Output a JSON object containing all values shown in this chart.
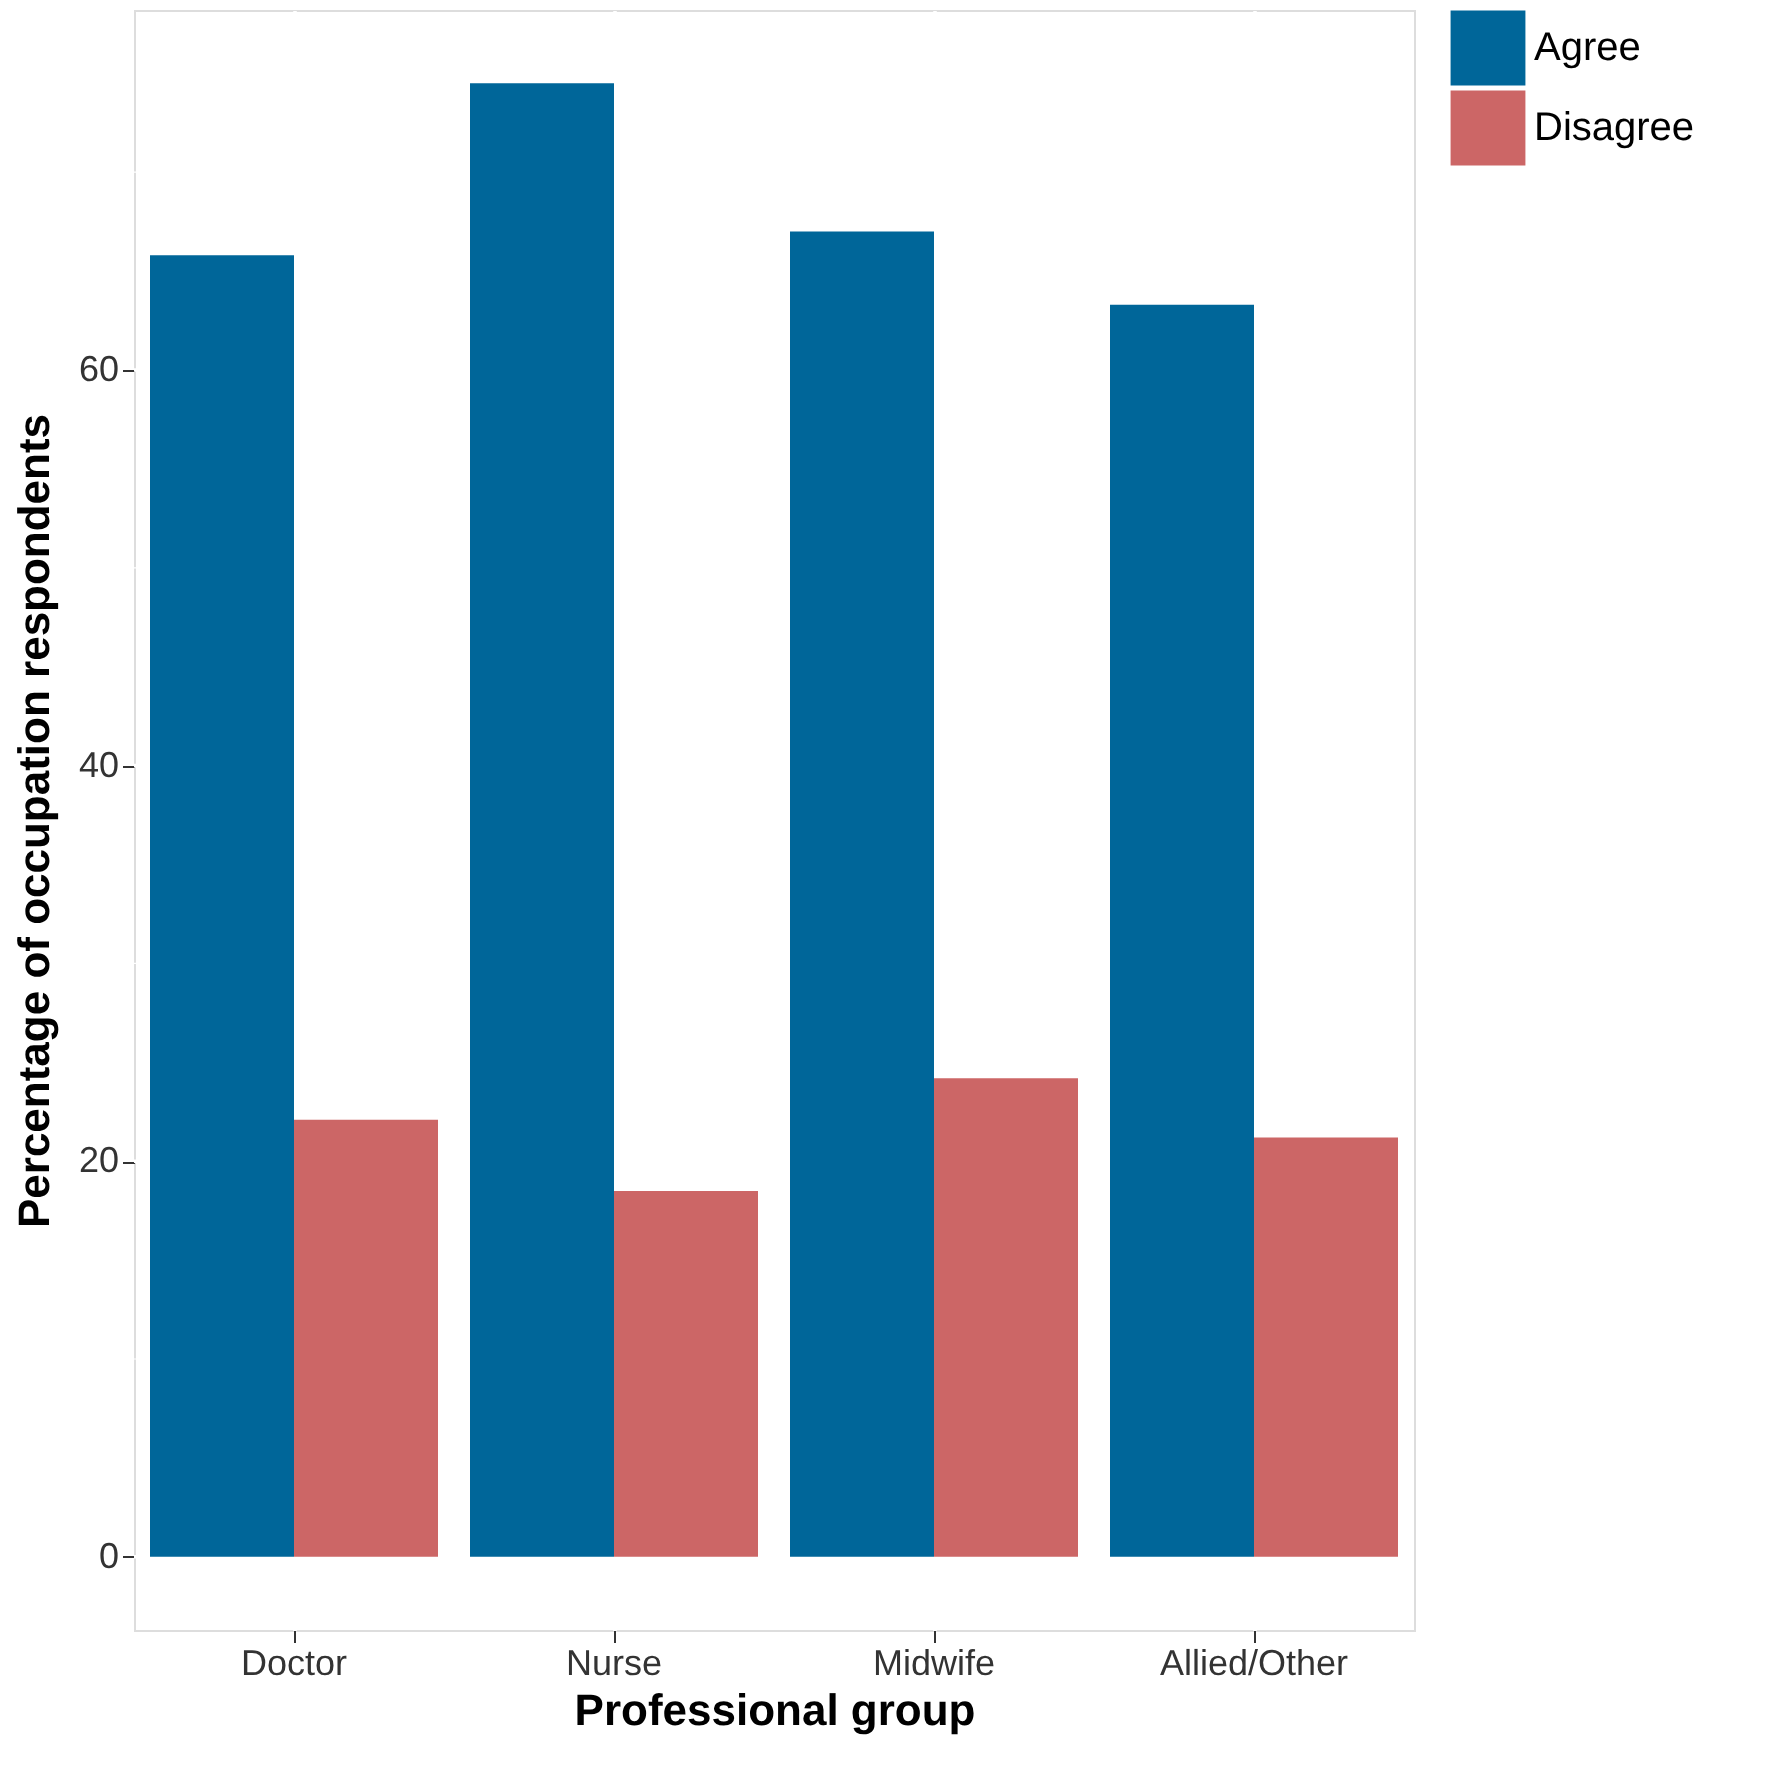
{
  "chart_data": {
    "type": "bar",
    "xlabel": "Professional group",
    "ylabel": "Percentage of occupation respondents",
    "categories": [
      "Doctor",
      "Nurse",
      "Midwife",
      "Allied/Other"
    ],
    "series": [
      {
        "name": "Agree",
        "color": "#006699",
        "values": [
          65.8,
          74.5,
          67.0,
          63.3
        ]
      },
      {
        "name": "Disagree",
        "color": "#cc6666",
        "values": [
          22.1,
          18.5,
          24.2,
          21.2
        ]
      }
    ],
    "ylim": [
      -3.7,
      78.2
    ],
    "yticks": [
      0,
      {
        "value": 10,
        "label": null
      },
      20,
      {
        "value": 30,
        "label": null
      },
      40,
      {
        "value": 50,
        "label": null
      },
      60,
      {
        "value": 70,
        "label": null
      }
    ],
    "grid": true,
    "legend": "right"
  }
}
